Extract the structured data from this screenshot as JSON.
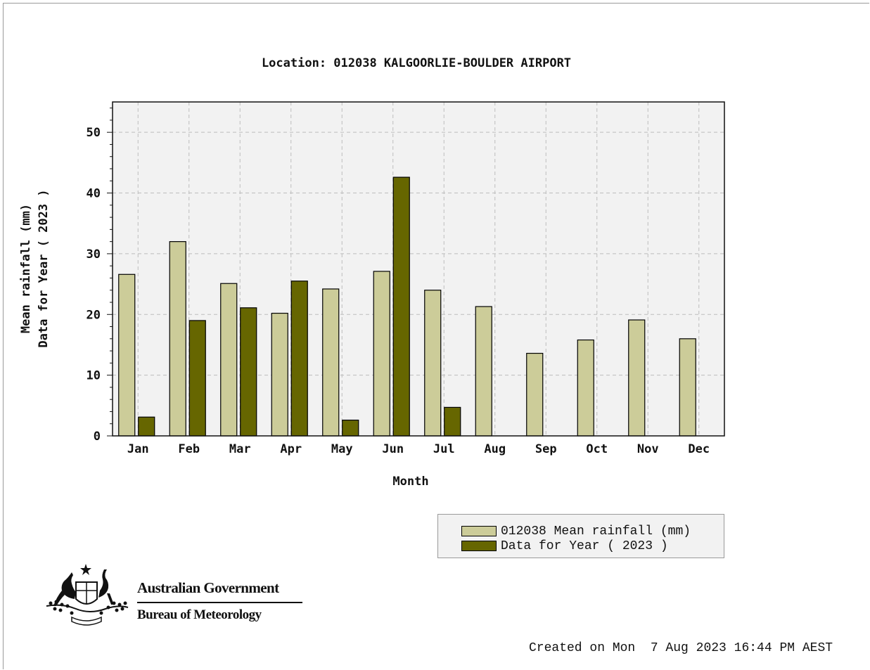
{
  "colors": {
    "mean": "#cccc99",
    "year": "#666600",
    "plot_bg": "#f2f2f2",
    "grid": "#bdbdbd"
  },
  "chart_data": {
    "type": "bar",
    "title": "Location: 012038 KALGOORLIE-BOULDER AIRPORT",
    "xlabel": "Month",
    "ylabel_lines": [
      "Mean rainfall (mm)",
      "Data for Year ( 2023 )"
    ],
    "ylim": [
      0,
      55
    ],
    "yticks": [
      0,
      10,
      20,
      30,
      40,
      50
    ],
    "grid": true,
    "legend_position": "bottom-right",
    "categories": [
      "Jan",
      "Feb",
      "Mar",
      "Apr",
      "May",
      "Jun",
      "Jul",
      "Aug",
      "Sep",
      "Oct",
      "Nov",
      "Dec"
    ],
    "series": [
      {
        "name": "012038 Mean rainfall (mm)",
        "color": "#cccc99",
        "values": [
          26.6,
          32.0,
          25.1,
          20.2,
          24.2,
          27.1,
          24.0,
          21.3,
          13.6,
          15.8,
          19.1,
          16.0
        ]
      },
      {
        "name": "Data for Year ( 2023 )",
        "color": "#666600",
        "values": [
          3.1,
          19.0,
          21.1,
          25.5,
          2.6,
          42.6,
          4.7,
          null,
          null,
          null,
          null,
          null
        ]
      }
    ]
  },
  "footer": {
    "gov_name": "Australian Government",
    "bureau_name": "Bureau of Meteorology",
    "created": "Created on Mon  7 Aug 2023 16:44 PM AEST"
  }
}
